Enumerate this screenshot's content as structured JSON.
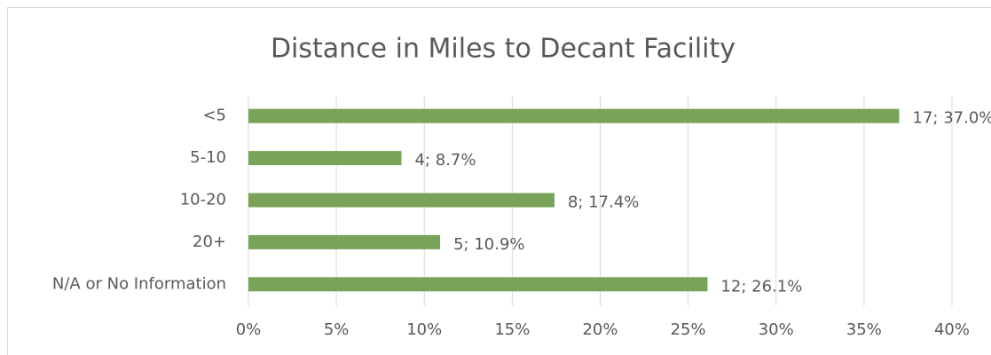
{
  "chart_data": {
    "type": "bar",
    "orientation": "horizontal",
    "title": "Distance in Miles to Decant Facility",
    "categories": [
      "<5",
      "5-10",
      "10-20",
      "20+",
      "N/A or No Information"
    ],
    "values": [
      37.0,
      8.7,
      17.4,
      10.9,
      26.1
    ],
    "value_labels": [
      "17; 37.0%",
      "4; 8.7%",
      "8; 17.4%",
      "5; 10.9%",
      "12; 26.1%"
    ],
    "color": "#78a358",
    "xlim": [
      0,
      40
    ],
    "xticks": [
      {
        "value": 0,
        "label": "0%"
      },
      {
        "value": 5,
        "label": "5%"
      },
      {
        "value": 10,
        "label": "10%"
      },
      {
        "value": 15,
        "label": "15%"
      },
      {
        "value": 20,
        "label": "20%"
      },
      {
        "value": 25,
        "label": "25%"
      },
      {
        "value": 30,
        "label": "30%"
      },
      {
        "value": 35,
        "label": "35%"
      },
      {
        "value": 40,
        "label": "40%"
      }
    ],
    "grid": true
  }
}
